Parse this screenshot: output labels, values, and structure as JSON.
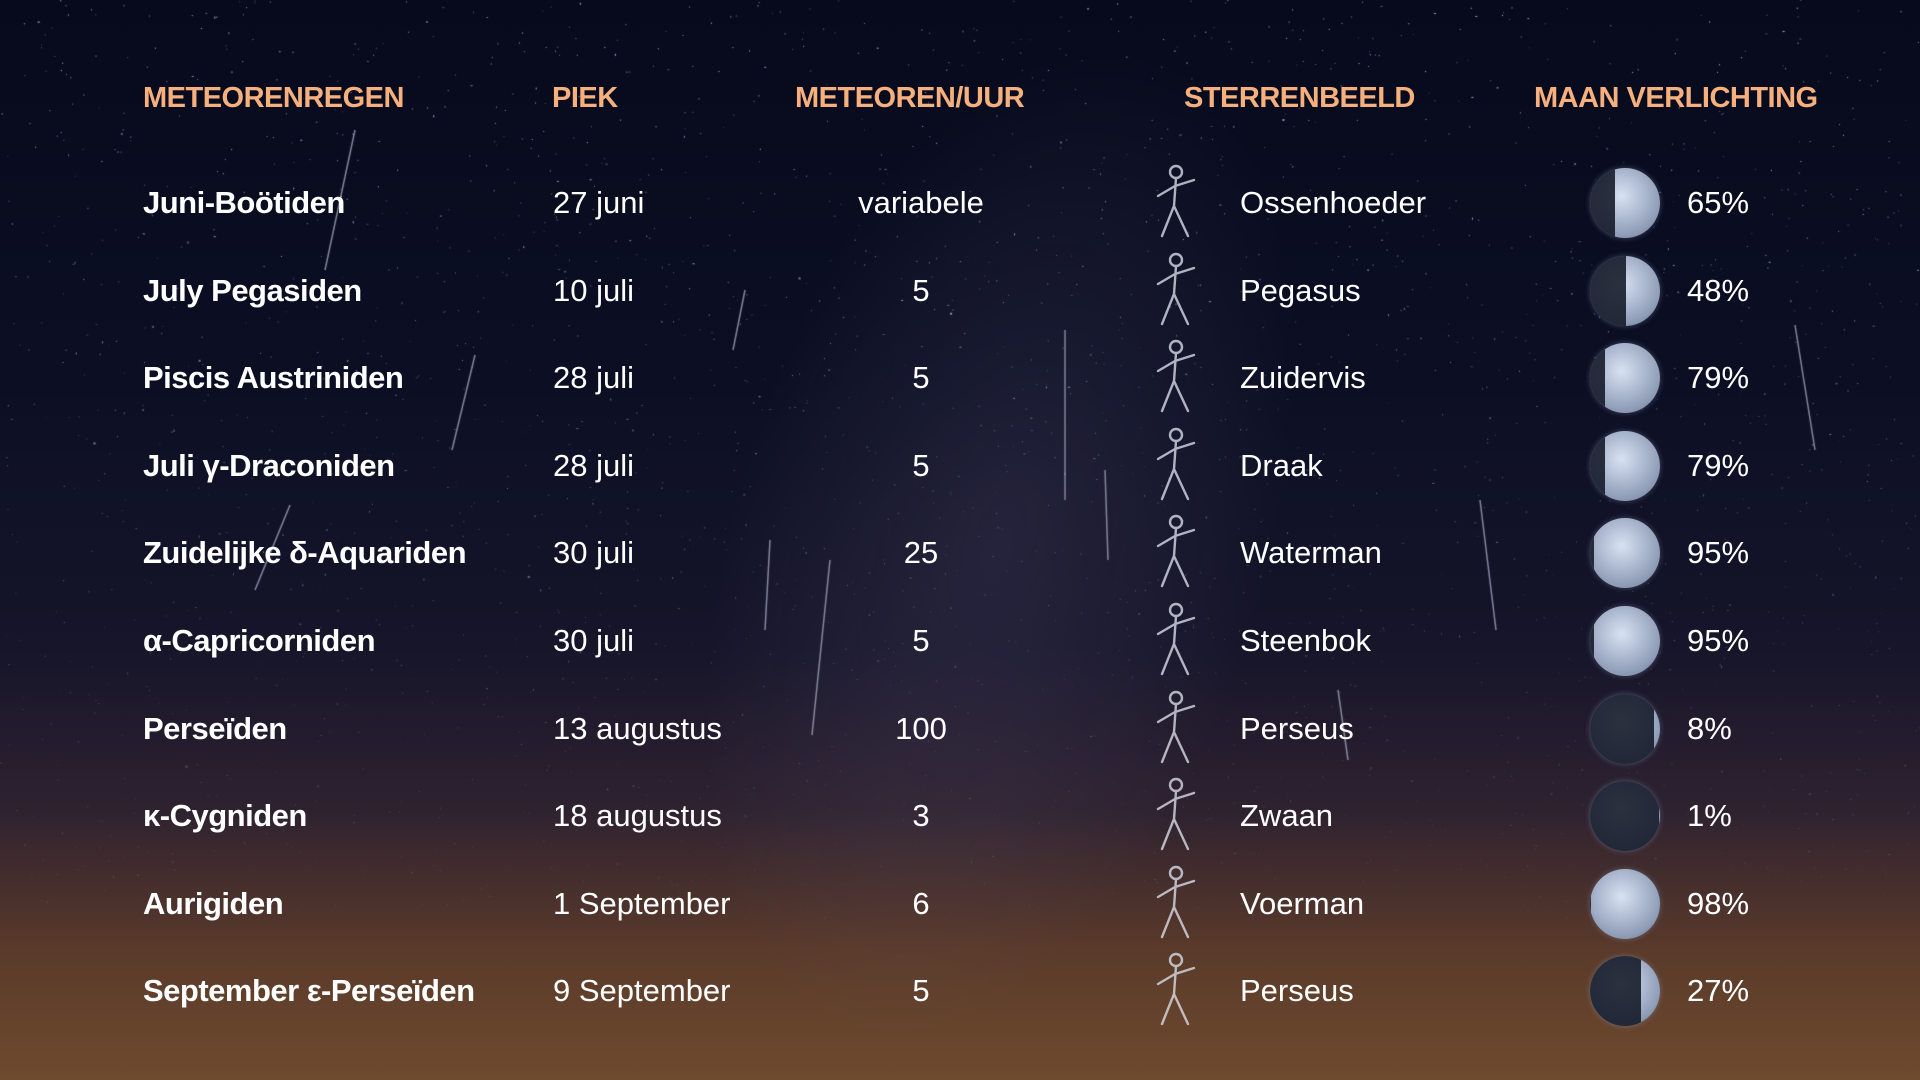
{
  "headers": {
    "shower": "METEORENREGEN",
    "peak": "PIEK",
    "rate": "METEOREN/UUR",
    "constellation": "STERRENBEELD",
    "moon": "MAAN VERLICHTING"
  },
  "colors": {
    "header": "#f5b07e",
    "text": "#ffffff"
  },
  "rows": [
    {
      "name": "Juni-Boötiden",
      "peak": "27 juni",
      "rate": "variabele",
      "constellation": "Ossenhoeder",
      "icon": "bootes-figure-icon",
      "moon": "65%",
      "illumination": 65
    },
    {
      "name": "July Pegasiden",
      "peak": "10 juli",
      "rate": "5",
      "constellation": "Pegasus",
      "icon": "pegasus-figure-icon",
      "moon": "48%",
      "illumination": 48
    },
    {
      "name": "Piscis Austriniden",
      "peak": "28 juli",
      "rate": "5",
      "constellation": "Zuidervis",
      "icon": "fish-figure-icon",
      "moon": "79%",
      "illumination": 79
    },
    {
      "name": "Juli γ-Draconiden",
      "peak": "28 juli",
      "rate": "5",
      "constellation": "Draak",
      "icon": "dragon-figure-icon",
      "moon": "79%",
      "illumination": 79
    },
    {
      "name": "Zuidelijke δ-Aquariden",
      "peak": "30 juli",
      "rate": "25",
      "constellation": "Waterman",
      "icon": "aquarius-figure-icon",
      "moon": "95%",
      "illumination": 95
    },
    {
      "name": "α-Capricorniden",
      "peak": "30 juli",
      "rate": "5",
      "constellation": "Steenbok",
      "icon": "capricorn-figure-icon",
      "moon": "95%",
      "illumination": 95
    },
    {
      "name": "Perseïden",
      "peak": "13 augustus",
      "rate": "100",
      "constellation": "Perseus",
      "icon": "perseus-figure-icon",
      "moon": "8%",
      "illumination": 8
    },
    {
      "name": "κ-Cygniden",
      "peak": "18 augustus",
      "rate": "3",
      "constellation": "Zwaan",
      "icon": "swan-figure-icon",
      "moon": "1%",
      "illumination": 1
    },
    {
      "name": "Aurigiden",
      "peak": "1 September",
      "rate": "6",
      "constellation": "Voerman",
      "icon": "auriga-figure-icon",
      "moon": "98%",
      "illumination": 98
    },
    {
      "name": "September ε-Perseïden",
      "peak": "9 September",
      "rate": "5",
      "constellation": "Perseus",
      "icon": "perseus-figure-icon",
      "moon": "27%",
      "illumination": 27
    }
  ]
}
